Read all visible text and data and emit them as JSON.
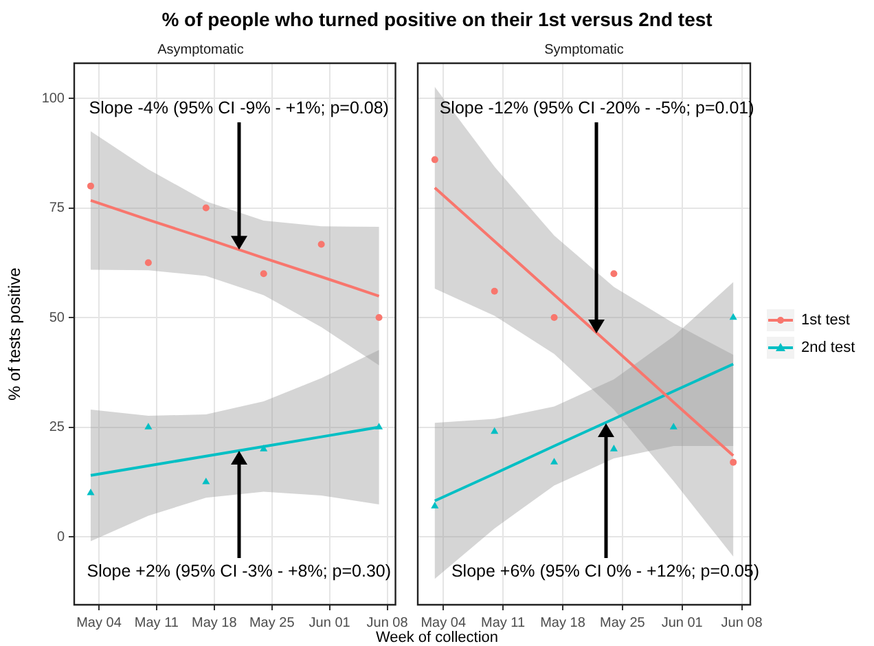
{
  "chart_data": [
    {
      "type": "scatter",
      "title": "% of people who turned positive on their 1st versus 2nd test",
      "subtitle": "Asymptomatic",
      "xlabel": "Week of collection",
      "ylabel": "% of tests positive",
      "xlim": [
        "--05-01",
        "--06-09"
      ],
      "xticks": [
        {
          "value": "--05-04",
          "label": "May 04"
        },
        {
          "value": "--05-11",
          "label": "May 11"
        },
        {
          "value": "--05-18",
          "label": "May 18"
        },
        {
          "value": "--05-25",
          "label": "May 25"
        },
        {
          "value": "--06-01",
          "label": "Jun 01"
        },
        {
          "value": "--06-08",
          "label": "Jun 08"
        }
      ],
      "ylim": [
        -15.5,
        108
      ],
      "yticks": [
        0,
        25,
        50,
        75,
        100
      ],
      "grid": true,
      "legend": false,
      "annotations": [
        {
          "text": "Slope -4% (95% CI -9% - +1%; p=0.08)",
          "x": "--05-21",
          "y": 65.5
        },
        {
          "text": "Slope +2% (95% CI -3% - +8%; p=0.30)",
          "x": "--05-21",
          "y": 19.7
        }
      ],
      "series": [
        {
          "type": "scatter",
          "color": "#f8766d",
          "marker": "circle",
          "x": [
            "--05-03",
            "--05-10",
            "--05-17",
            "--05-24",
            "--05-31",
            "--06-07"
          ],
          "values": [
            80,
            62.5,
            75,
            60,
            66.7,
            50
          ]
        },
        {
          "type": "line",
          "color": "#f8766d",
          "x": [
            "--05-03",
            "--05-10",
            "--05-17",
            "--05-24",
            "--05-31",
            "--06-07"
          ],
          "values": [
            76.7,
            72.3,
            68.0,
            63.6,
            59.3,
            54.9
          ],
          "lower": [
            60.9,
            60.8,
            59.5,
            55.1,
            47.8,
            39.1
          ],
          "upper": [
            92.5,
            83.8,
            76.5,
            72.1,
            70.8,
            70.7
          ]
        },
        {
          "type": "scatter",
          "color": "#00bfc4",
          "marker": "triangle",
          "x": [
            "--05-03",
            "--05-10",
            "--05-17",
            "--05-24",
            "--06-07"
          ],
          "values": [
            10,
            25,
            12.5,
            20,
            25
          ]
        },
        {
          "type": "line",
          "color": "#00bfc4",
          "x": [
            "--05-03",
            "--05-10",
            "--05-17",
            "--05-24",
            "--05-31",
            "--06-07"
          ],
          "values": [
            14.0,
            16.2,
            18.4,
            20.6,
            22.8,
            25.0
          ],
          "lower": [
            -1.0,
            4.8,
            8.9,
            10.3,
            9.4,
            7.4
          ],
          "upper": [
            29.0,
            27.6,
            27.9,
            30.9,
            36.2,
            42.6
          ]
        }
      ]
    },
    {
      "type": "scatter",
      "subtitle": "Symptomatic",
      "xlim": [
        "--05-01",
        "--06-09"
      ],
      "xticks": [
        {
          "value": "--05-04",
          "label": "May 04"
        },
        {
          "value": "--05-11",
          "label": "May 11"
        },
        {
          "value": "--05-18",
          "label": "May 18"
        },
        {
          "value": "--05-25",
          "label": "May 25"
        },
        {
          "value": "--06-01",
          "label": "Jun 01"
        },
        {
          "value": "--06-08",
          "label": "Jun 08"
        }
      ],
      "ylim": [
        -15.5,
        108
      ],
      "yticks": [
        0,
        25,
        50,
        75,
        100
      ],
      "tick_labels": "x",
      "grid": true,
      "legend": "right",
      "annotations": [
        {
          "text": "Slope -12% (95% CI -20% - -5%; p=0.01)",
          "x": "--05-22",
          "y": 46.4
        },
        {
          "text": "Slope +6% (95% CI 0% - +12%; p=0.05)",
          "x": "--05-23",
          "y": 26.0
        }
      ],
      "series": [
        {
          "type": "scatter",
          "color": "#f8766d",
          "marker": "circle",
          "x": [
            "--05-03",
            "--05-10",
            "--05-17",
            "--05-24",
            "--06-07"
          ],
          "values": [
            86,
            56,
            50,
            60,
            17
          ]
        },
        {
          "type": "line",
          "name": "1st test",
          "color": "#f8766d",
          "x": [
            "--05-03",
            "--05-10",
            "--05-17",
            "--05-24",
            "--05-31",
            "--06-07"
          ],
          "values": [
            79.6,
            67.4,
            55.2,
            43.0,
            30.7,
            18.5
          ],
          "lower": [
            56.6,
            50.4,
            41.7,
            29,
            12.7,
            -4.5
          ],
          "upper": [
            102.6,
            84.4,
            68.7,
            57,
            48.7,
            41.5
          ]
        },
        {
          "type": "scatter",
          "color": "#00bfc4",
          "marker": "triangle",
          "x": [
            "--05-03",
            "--05-10",
            "--05-17",
            "--05-24",
            "--05-31",
            "--06-07"
          ],
          "values": [
            7,
            24,
            17,
            20,
            25,
            50
          ]
        },
        {
          "type": "line",
          "name": "2nd test",
          "color": "#00bfc4",
          "x": [
            "--05-03",
            "--05-10",
            "--05-17",
            "--05-24",
            "--05-31",
            "--06-07"
          ],
          "values": [
            8.2,
            14.4,
            20.7,
            26.9,
            33.2,
            39.4
          ],
          "lower": [
            -9.6,
            1.9,
            11.7,
            17.9,
            20.7,
            20.7
          ],
          "upper": [
            26,
            26.9,
            29.7,
            35.9,
            45.7,
            58.1
          ]
        }
      ]
    }
  ]
}
